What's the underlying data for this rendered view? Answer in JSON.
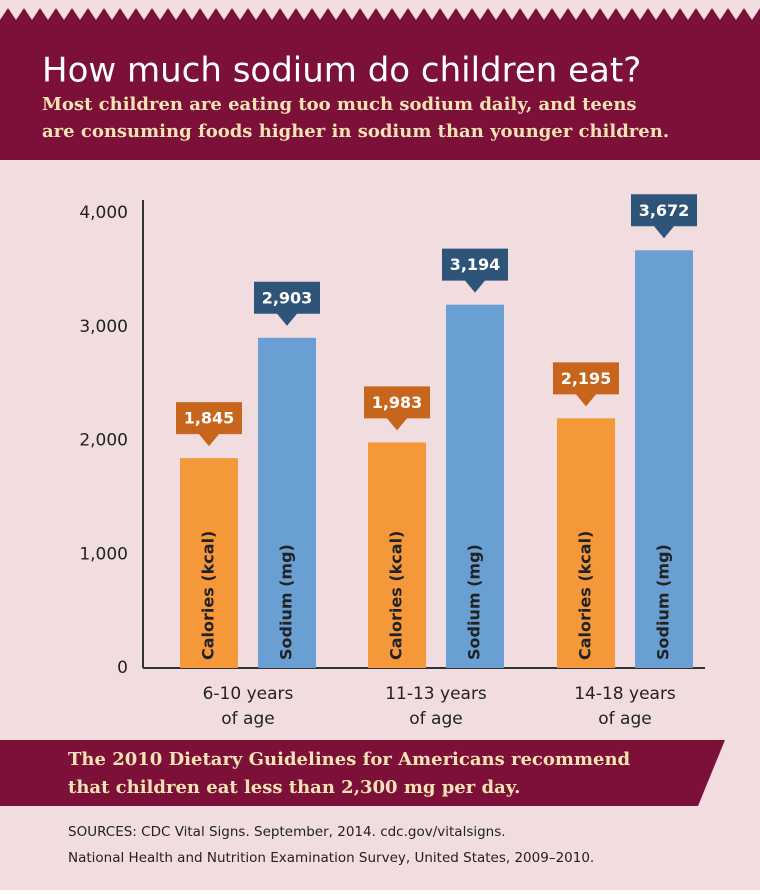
{
  "chart_data": {
    "type": "bar",
    "title": "How much sodium do children eat?",
    "subtitle": [
      "Most children are eating too much sodium daily, and teens",
      "are consuming foods higher in sodium than younger children."
    ],
    "categories": [
      [
        "6-10 years",
        "of age"
      ],
      [
        "11-13 years",
        "of age"
      ],
      [
        "14-18 years",
        "of age"
      ]
    ],
    "series": [
      {
        "name": "Calories (kcal)",
        "color": "#f4983a",
        "label_color": "#c7651d",
        "values": [
          1845,
          1983,
          2195
        ],
        "value_labels": [
          "1,845",
          "1,983",
          "2,195"
        ]
      },
      {
        "name": "Sodium (mg)",
        "color": "#6a9fd3",
        "label_color": "#2f5479",
        "values": [
          2903,
          3194,
          3672
        ],
        "value_labels": [
          "2,903",
          "3,194",
          "3,672"
        ]
      }
    ],
    "ylim": [
      0,
      4000
    ],
    "yticks": [
      0,
      {
        "value": 1000,
        "label": "1,000"
      },
      {
        "value": 2000,
        "label": "2,000"
      },
      {
        "value": 3000,
        "label": "3,000"
      },
      {
        "value": 4000,
        "label": "4,000"
      }
    ],
    "grid": false,
    "note": [
      "The 2010 Dietary Guidelines for Americans recommend",
      "that children eat less than 2,300 mg per day."
    ],
    "sources": [
      "SOURCES: CDC Vital Signs. September, 2014. cdc.gov/vitalsigns.",
      "National Health and Nutrition Examination Survey, United States, 2009–2010."
    ]
  }
}
